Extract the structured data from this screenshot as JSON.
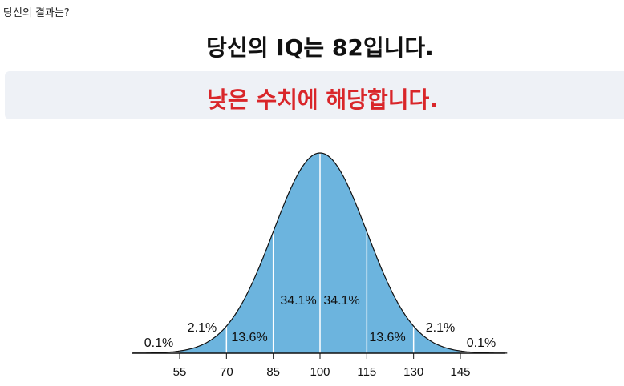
{
  "header": {
    "prompt": "당신의 결과는?"
  },
  "result": {
    "title": "당신의 IQ는 82입니다.",
    "verdict": "낮은 수치에 해당합니다."
  },
  "distribution": {
    "xticks": [
      55,
      70,
      85,
      100,
      115,
      130,
      145
    ],
    "segment_labels": [
      "0.1%",
      "2.1%",
      "13.6%",
      "34.1%",
      "34.1%",
      "13.6%",
      "2.1%",
      "0.1%"
    ]
  }
}
